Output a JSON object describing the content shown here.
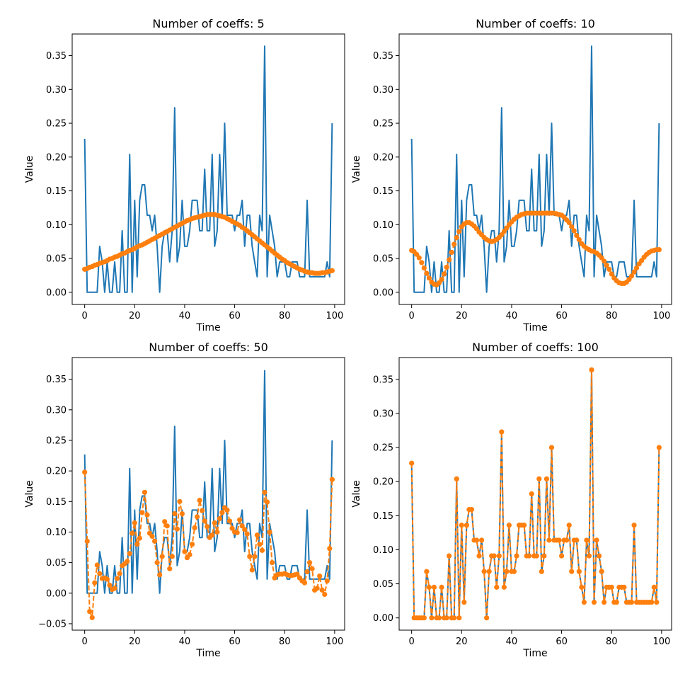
{
  "colors": {
    "original": "#1f77b4",
    "reconstruction": "#ff7f0e"
  },
  "chart_data": [
    {
      "type": "line",
      "title": "Number of coeffs: 5",
      "xlabel": "Time",
      "ylabel": "Value",
      "xlim": [
        -5,
        104
      ],
      "ylim": [
        -0.018,
        0.382
      ],
      "xticks": [
        0,
        20,
        40,
        60,
        80,
        100
      ],
      "yticks": [
        0.0,
        0.05,
        0.1,
        0.15,
        0.2,
        0.25,
        0.3,
        0.35
      ],
      "ytick_labels": [
        "0.00",
        "0.05",
        "0.10",
        "0.15",
        "0.20",
        "0.25",
        "0.30",
        "0.35"
      ],
      "grid": false,
      "series": [
        {
          "style": "solid",
          "color": "#1f77b4",
          "ref": "original"
        },
        {
          "style": "dashed-markers",
          "color": "#ff7f0e",
          "values": [
            0.034,
            0.035,
            0.037,
            0.038,
            0.04,
            0.041,
            0.043,
            0.044,
            0.045,
            0.047,
            0.049,
            0.05,
            0.052,
            0.053,
            0.055,
            0.057,
            0.058,
            0.06,
            0.062,
            0.063,
            0.065,
            0.067,
            0.069,
            0.07,
            0.072,
            0.074,
            0.076,
            0.078,
            0.08,
            0.082,
            0.084,
            0.086,
            0.088,
            0.09,
            0.092,
            0.094,
            0.096,
            0.098,
            0.1,
            0.102,
            0.104,
            0.106,
            0.107,
            0.109,
            0.11,
            0.111,
            0.112,
            0.113,
            0.114,
            0.115,
            0.115,
            0.115,
            0.115,
            0.114,
            0.113,
            0.112,
            0.111,
            0.109,
            0.107,
            0.105,
            0.103,
            0.101,
            0.099,
            0.096,
            0.094,
            0.091,
            0.088,
            0.085,
            0.082,
            0.079,
            0.076,
            0.073,
            0.07,
            0.067,
            0.064,
            0.061,
            0.058,
            0.055,
            0.052,
            0.049,
            0.047,
            0.044,
            0.042,
            0.04,
            0.038,
            0.036,
            0.034,
            0.033,
            0.031,
            0.03,
            0.029,
            0.029,
            0.028,
            0.028,
            0.028,
            0.029,
            0.029,
            0.03,
            0.031,
            0.032
          ]
        }
      ]
    },
    {
      "type": "line",
      "title": "Number of coeffs: 10",
      "xlabel": "Time",
      "ylabel": "Value",
      "xlim": [
        -5,
        104
      ],
      "ylim": [
        -0.018,
        0.382
      ],
      "xticks": [
        0,
        20,
        40,
        60,
        80,
        100
      ],
      "yticks": [
        0.0,
        0.05,
        0.1,
        0.15,
        0.2,
        0.25,
        0.3,
        0.35
      ],
      "ytick_labels": [
        "0.00",
        "0.05",
        "0.10",
        "0.15",
        "0.20",
        "0.25",
        "0.30",
        "0.35"
      ],
      "grid": false,
      "series": [
        {
          "style": "solid",
          "color": "#1f77b4",
          "ref": "original"
        },
        {
          "style": "dashed-markers",
          "color": "#ff7f0e",
          "values": [
            0.062,
            0.06,
            0.056,
            0.051,
            0.044,
            0.036,
            0.028,
            0.021,
            0.015,
            0.012,
            0.011,
            0.014,
            0.019,
            0.027,
            0.037,
            0.048,
            0.059,
            0.071,
            0.081,
            0.09,
            0.097,
            0.101,
            0.103,
            0.103,
            0.101,
            0.098,
            0.094,
            0.089,
            0.085,
            0.081,
            0.078,
            0.076,
            0.075,
            0.076,
            0.078,
            0.081,
            0.085,
            0.09,
            0.095,
            0.1,
            0.104,
            0.108,
            0.111,
            0.113,
            0.115,
            0.116,
            0.117,
            0.117,
            0.117,
            0.117,
            0.117,
            0.117,
            0.117,
            0.117,
            0.117,
            0.117,
            0.117,
            0.117,
            0.116,
            0.115,
            0.114,
            0.111,
            0.107,
            0.103,
            0.097,
            0.091,
            0.084,
            0.078,
            0.072,
            0.068,
            0.065,
            0.063,
            0.061,
            0.06,
            0.058,
            0.055,
            0.051,
            0.046,
            0.04,
            0.034,
            0.027,
            0.021,
            0.017,
            0.014,
            0.013,
            0.013,
            0.015,
            0.019,
            0.024,
            0.03,
            0.036,
            0.042,
            0.047,
            0.052,
            0.056,
            0.059,
            0.061,
            0.062,
            0.063,
            0.063
          ]
        }
      ]
    },
    {
      "type": "line",
      "title": "Number of coeffs: 50",
      "xlabel": "Time",
      "ylabel": "Value",
      "xlim": [
        -5,
        104
      ],
      "ylim": [
        -0.0605,
        0.3855
      ],
      "xticks": [
        0,
        20,
        40,
        60,
        80,
        100
      ],
      "yticks": [
        -0.05,
        0.0,
        0.05,
        0.1,
        0.15,
        0.2,
        0.25,
        0.3,
        0.35
      ],
      "ytick_labels": [
        "−0.05",
        "0.00",
        "0.05",
        "0.10",
        "0.15",
        "0.20",
        "0.25",
        "0.30",
        "0.35"
      ],
      "grid": false,
      "series": [
        {
          "style": "solid",
          "color": "#1f77b4",
          "ref": "original"
        },
        {
          "style": "dashed-markers",
          "color": "#ff7f0e",
          "values": [
            0.198,
            0.085,
            -0.03,
            -0.04,
            0.017,
            0.046,
            0.032,
            0.024,
            0.025,
            0.023,
            0.013,
            0.006,
            0.008,
            0.024,
            0.032,
            0.045,
            0.048,
            0.052,
            0.065,
            0.098,
            0.115,
            0.08,
            0.09,
            0.132,
            0.165,
            0.128,
            0.098,
            0.093,
            0.085,
            0.05,
            0.03,
            0.06,
            0.117,
            0.11,
            0.04,
            0.06,
            0.13,
            0.105,
            0.15,
            0.13,
            0.068,
            0.058,
            0.063,
            0.08,
            0.107,
            0.125,
            0.152,
            0.135,
            0.118,
            0.109,
            0.091,
            0.095,
            0.115,
            0.1,
            0.122,
            0.132,
            0.14,
            0.136,
            0.118,
            0.106,
            0.1,
            0.099,
            0.12,
            0.11,
            0.104,
            0.097,
            0.06,
            0.038,
            0.06,
            0.095,
            0.08,
            0.07,
            0.165,
            0.149,
            0.1,
            0.05,
            0.025,
            0.03,
            0.031,
            0.031,
            0.032,
            0.03,
            0.029,
            0.029,
            0.03,
            0.031,
            0.025,
            0.02,
            0.017,
            0.035,
            0.05,
            0.04,
            0.005,
            0.008,
            0.028,
            0.005,
            -0.002,
            0.02,
            0.073,
            0.186
          ]
        }
      ]
    },
    {
      "type": "line",
      "title": "Number of coeffs: 100",
      "xlabel": "Time",
      "ylabel": "Value",
      "xlim": [
        -5,
        104
      ],
      "ylim": [
        -0.018,
        0.382
      ],
      "xticks": [
        0,
        20,
        40,
        60,
        80,
        100
      ],
      "yticks": [
        0.0,
        0.05,
        0.1,
        0.15,
        0.2,
        0.25,
        0.3,
        0.35
      ],
      "ytick_labels": [
        "0.00",
        "0.05",
        "0.10",
        "0.15",
        "0.20",
        "0.25",
        "0.30",
        "0.35"
      ],
      "grid": false,
      "series": [
        {
          "style": "solid",
          "color": "#1f77b4",
          "ref": "original"
        },
        {
          "style": "dashed-markers",
          "color": "#ff7f0e",
          "ref": "original"
        }
      ]
    }
  ],
  "original_series": [
    0.227,
    0,
    0,
    0,
    0,
    0,
    0.068,
    0.045,
    0,
    0.045,
    0,
    0,
    0.045,
    0,
    0,
    0.091,
    0,
    0,
    0.204,
    0,
    0.136,
    0.023,
    0.136,
    0.159,
    0.159,
    0.114,
    0.114,
    0.091,
    0.114,
    0.068,
    0,
    0.068,
    0.091,
    0.091,
    0.045,
    0.091,
    0.273,
    0.045,
    0.068,
    0.136,
    0.068,
    0.068,
    0.091,
    0.136,
    0.136,
    0.136,
    0.091,
    0.091,
    0.182,
    0.091,
    0.091,
    0.204,
    0.068,
    0.091,
    0.204,
    0.114,
    0.25,
    0.114,
    0.114,
    0.114,
    0.091,
    0.114,
    0.114,
    0.136,
    0.068,
    0.114,
    0.114,
    0.068,
    0.045,
    0.023,
    0.114,
    0.091,
    0.364,
    0.023,
    0.114,
    0.091,
    0.068,
    0.023,
    0.045,
    0.045,
    0.045,
    0.023,
    0.023,
    0.045,
    0.045,
    0.045,
    0.023,
    0.023,
    0.023,
    0.136,
    0.023,
    0.023,
    0.023,
    0.023,
    0.023,
    0.023,
    0.023,
    0.045,
    0.023,
    0.25
  ]
}
